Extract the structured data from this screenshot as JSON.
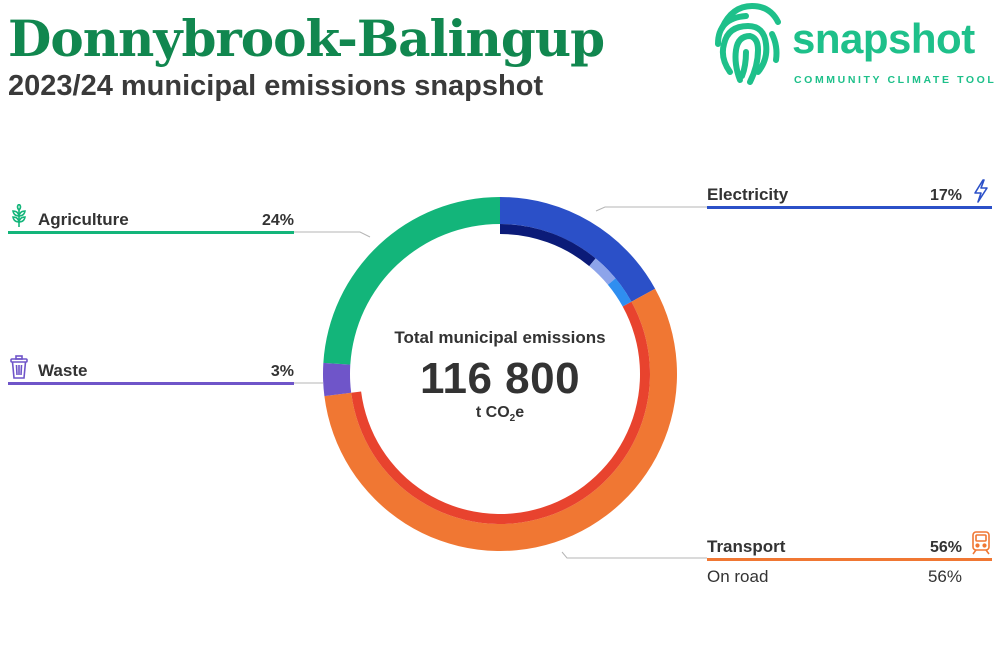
{
  "header": {
    "title": "Donnybrook-Balingup",
    "subtitle": "2023/24 municipal emissions snapshot"
  },
  "logo": {
    "word": "snapshot",
    "tagline": "COMMUNITY CLIMATE TOOL",
    "icon": "fingerprint-icon",
    "color": "#1ec08a"
  },
  "center": {
    "heading": "Total municipal emissions",
    "total": "116 800",
    "unit_prefix": "t CO",
    "unit_sub": "2",
    "unit_suffix": "e"
  },
  "categories": {
    "agriculture": {
      "label": "Agriculture",
      "pct": "24%",
      "color": "#13b57a",
      "icon": "wheat-icon"
    },
    "waste": {
      "label": "Waste",
      "pct": "3%",
      "color": "#6f55c9",
      "icon": "trash-bin-icon"
    },
    "electricity": {
      "label": "Electricity",
      "pct": "17%",
      "color": "#2b50c8",
      "icon": "lightning-icon"
    },
    "transport": {
      "label": "Transport",
      "pct": "56%",
      "color": "#f07733",
      "icon": "train-icon",
      "sub": {
        "label": "On road",
        "pct": "56%"
      }
    }
  },
  "chart_data": {
    "type": "pie",
    "style": "donut",
    "total": 116800,
    "unit": "t CO2e",
    "series": [
      {
        "name": "Electricity",
        "value": 17,
        "color": "#2b50c8",
        "inner": [
          {
            "value": 11,
            "color": "#0b1b78"
          },
          {
            "value": 3,
            "color": "#8da4ea"
          },
          {
            "value": 3,
            "color": "#2f8ef0"
          }
        ]
      },
      {
        "name": "Transport",
        "value": 56,
        "color": "#f07733",
        "inner": [
          {
            "value": 56,
            "color": "#e8432e"
          }
        ]
      },
      {
        "name": "Waste",
        "value": 3,
        "color": "#6f55c9",
        "inner": []
      },
      {
        "name": "Agriculture",
        "value": 24,
        "color": "#13b57a",
        "inner": []
      }
    ]
  }
}
